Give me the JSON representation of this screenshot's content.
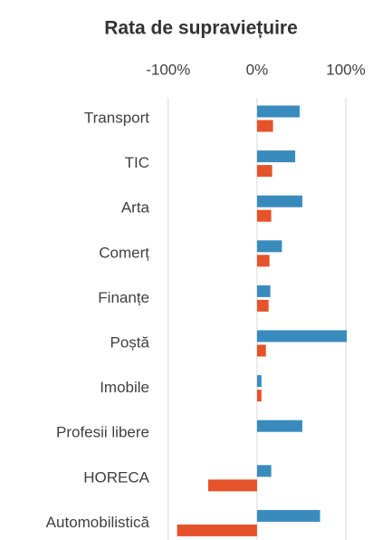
{
  "chart_data": {
    "type": "hbar",
    "title": "Rata de supraviețuire",
    "categories": [
      "Transport",
      "TIC",
      "Arta",
      "Comerț",
      "Finanțe",
      "Poștă",
      "Imobile",
      "Profesii libere",
      "HORECA",
      "Automobilistică"
    ],
    "series": [
      {
        "color": "#3a8bbd",
        "values": [
          48,
          43,
          51,
          28,
          15,
          101,
          5,
          51,
          16,
          71
        ]
      },
      {
        "color": "#e5532a",
        "values": [
          18,
          17,
          16,
          14,
          13,
          10,
          5,
          0,
          -55,
          -90
        ]
      }
    ],
    "xlim": [
      -110,
      100
    ],
    "xticks": [
      {
        "value": -100,
        "label": "-100%"
      },
      {
        "value": 0,
        "label": "0%"
      },
      {
        "value": 100,
        "label": "100%"
      }
    ],
    "grid": true
  }
}
